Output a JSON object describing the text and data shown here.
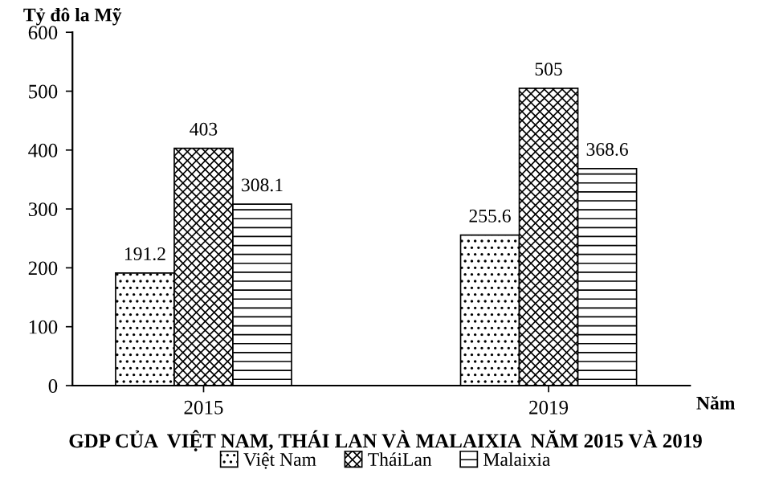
{
  "chart_data": {
    "type": "bar",
    "title": "GDP CỦA  VIỆT NAM, THÁI LAN VÀ MALAIXIA  NĂM 2015 VÀ 2019",
    "ylabel": "Tỷ đô la Mỹ",
    "xlabel": "Năm",
    "categories": [
      "2015",
      "2019"
    ],
    "series": [
      {
        "name": "Việt Nam",
        "color": "#000000",
        "values": [
          191.2,
          255.6
        ]
      },
      {
        "name": "TháiLan",
        "color": "#000000",
        "values": [
          403,
          505
        ]
      },
      {
        "name": "Malaixia",
        "color": "#000000",
        "values": [
          308.1,
          368.6
        ]
      }
    ],
    "ylim": [
      0,
      600
    ],
    "yticks": [
      0,
      100,
      200,
      300,
      400,
      500,
      600
    ],
    "data_labels": true,
    "legend": "bottom",
    "grid": false
  }
}
